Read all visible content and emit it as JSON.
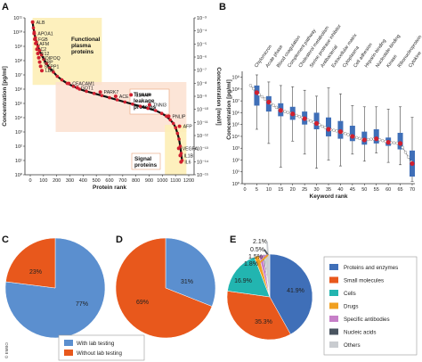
{
  "figure": {
    "panel_labels": [
      "A",
      "B",
      "C",
      "D",
      "E"
    ],
    "copyright": "© EMBO"
  },
  "chart_data": [
    {
      "panel": "A",
      "type": "scatter",
      "xlabel": "Protein rank",
      "ylabel": "Concentration [pg/ml]",
      "ylabel_right": "Concentration [mol/l]",
      "xlim": [
        -50,
        1050
      ],
      "ylim_log10": [
        0,
        11
      ],
      "xticks": [
        "0",
        "100",
        "200",
        "300",
        "400",
        "500",
        "600",
        "700",
        "800",
        "900",
        "1000",
        "1100",
        "1200"
      ],
      "yticks_left": [
        "10⁰",
        "10¹",
        "10²",
        "10³",
        "10⁴",
        "10⁵",
        "10⁶",
        "10⁷",
        "10⁸",
        "10⁹",
        "10¹⁰",
        "10¹¹"
      ],
      "yticks_right": [
        "10⁻¹⁵",
        "10⁻¹⁴",
        "10⁻¹³",
        "10⁻¹²",
        "10⁻¹¹",
        "10⁻¹⁰",
        "10⁻⁹",
        "10⁻⁸",
        "10⁻⁷",
        "10⁻⁶",
        "10⁻⁵",
        "10⁻⁴",
        "10⁻³"
      ],
      "regions": [
        {
          "label": "Functional plasma proteins",
          "x_range": [
            0,
            450
          ],
          "log_range": [
            6.3,
            11
          ]
        },
        {
          "label": "Tissue leakage proteins",
          "x_range": [
            150,
            1000
          ],
          "log_range": [
            3,
            6.5
          ]
        },
        {
          "label": "Signal proteins",
          "x_range": [
            860,
            1000
          ],
          "log_range": [
            0,
            3.5
          ]
        }
      ],
      "points": [
        {
          "x": 0,
          "log": 10.7
        },
        {
          "x": 5,
          "log": 10.3
        },
        {
          "x": 10,
          "log": 10.0
        },
        {
          "x": 18,
          "log": 9.6
        },
        {
          "x": 25,
          "log": 9.3
        },
        {
          "x": 35,
          "log": 9.0
        },
        {
          "x": 45,
          "log": 8.7
        },
        {
          "x": 58,
          "log": 8.4
        },
        {
          "x": 72,
          "log": 8.1
        },
        {
          "x": 90,
          "log": 7.8
        },
        {
          "x": 110,
          "log": 7.5
        },
        {
          "x": 135,
          "log": 7.2
        },
        {
          "x": 160,
          "log": 6.9
        },
        {
          "x": 190,
          "log": 6.65
        },
        {
          "x": 225,
          "log": 6.4
        },
        {
          "x": 265,
          "log": 6.2
        },
        {
          "x": 305,
          "log": 6.0
        },
        {
          "x": 350,
          "log": 5.85
        },
        {
          "x": 400,
          "log": 5.7
        },
        {
          "x": 450,
          "log": 5.55
        },
        {
          "x": 500,
          "log": 5.4
        },
        {
          "x": 550,
          "log": 5.25
        },
        {
          "x": 600,
          "log": 5.1
        },
        {
          "x": 650,
          "log": 4.95
        },
        {
          "x": 700,
          "log": 4.8
        },
        {
          "x": 750,
          "log": 4.65
        },
        {
          "x": 800,
          "log": 4.5
        },
        {
          "x": 840,
          "log": 4.3
        },
        {
          "x": 870,
          "log": 4.1
        },
        {
          "x": 895,
          "log": 3.85
        },
        {
          "x": 915,
          "log": 3.6
        },
        {
          "x": 930,
          "log": 3.3
        },
        {
          "x": 942,
          "log": 2.9
        },
        {
          "x": 952,
          "log": 2.5
        },
        {
          "x": 960,
          "log": 2.0
        },
        {
          "x": 966,
          "log": 1.5
        },
        {
          "x": 972,
          "log": 1.0
        }
      ],
      "annotations": [
        {
          "text": "ALB",
          "x": 0,
          "log": 10.7
        },
        {
          "text": "APOA1",
          "x": 10,
          "log": 9.9
        },
        {
          "text": "FGB",
          "x": 14,
          "log": 9.5
        },
        {
          "text": "AFM",
          "x": 20,
          "log": 9.2
        },
        {
          "text": "C2",
          "x": 28,
          "log": 8.8
        },
        {
          "text": "F12",
          "x": 34,
          "log": 8.5
        },
        {
          "text": "ADIPOQ",
          "x": 40,
          "log": 8.2
        },
        {
          "text": "CRP",
          "x": 46,
          "log": 7.9
        },
        {
          "text": "SEPP1",
          "x": 52,
          "log": 7.6
        },
        {
          "text": "LBP",
          "x": 60,
          "log": 7.3
        },
        {
          "text": "CEACAM1",
          "x": 235,
          "log": 6.4
        },
        {
          "text": "GOT1",
          "x": 290,
          "log": 6.1
        },
        {
          "text": "PARK7",
          "x": 440,
          "log": 5.8
        },
        {
          "text": "ACE",
          "x": 540,
          "log": 5.5
        },
        {
          "text": "IL1RAP",
          "x": 640,
          "log": 5.6
        },
        {
          "text": "TNNI3",
          "x": 760,
          "log": 4.9
        },
        {
          "text": "PNLIP",
          "x": 885,
          "log": 4.1
        },
        {
          "text": "AFP",
          "x": 955,
          "log": 3.4
        },
        {
          "text": "VEGFA",
          "x": 950,
          "log": 1.85
        },
        {
          "text": "IL1B",
          "x": 960,
          "log": 1.35
        },
        {
          "text": "IL6",
          "x": 965,
          "log": 0.9
        }
      ],
      "colors": {
        "point": "#d01f2f",
        "line": "#111111",
        "plasma": "#fdeeb6",
        "tissue": "#fbe0d0"
      }
    },
    {
      "panel": "B",
      "type": "box",
      "xlabel": "Keyword rank",
      "ylabel": "Concentration [pg/ml]",
      "xticks": [
        "0",
        "5",
        "10",
        "15",
        "20",
        "25",
        "30",
        "35",
        "40",
        "45",
        "50",
        "55",
        "60",
        "65",
        "70"
      ],
      "yticks": [
        "10⁰",
        "10¹",
        "10²",
        "10³",
        "10⁴",
        "10⁵",
        "10⁶",
        "10⁷",
        "10⁸",
        "10⁹"
      ],
      "ylim_log10": [
        0,
        9.5
      ],
      "categories": [
        "Chylomicron",
        "Acute phase",
        "Blood coagulation",
        "Complement pathway",
        "Cholesterol metabolism",
        "Serine protease inhibitor",
        "Antibacterial",
        "Extracellular matrix",
        "Cytoplasma",
        "Cell adhesion",
        "Heparin-binding",
        "Nucleotide-binding",
        "Kinase",
        "Ribonucleoprotein",
        "Cytokine"
      ],
      "boxes": [
        {
          "x": 5,
          "q1": 6.6,
          "med": 7.7,
          "q3": 8.3,
          "min": 4.6,
          "max": 9.2
        },
        {
          "x": 10,
          "q1": 6.1,
          "med": 6.9,
          "q3": 7.4,
          "min": 3.4,
          "max": 8.6
        },
        {
          "x": 15,
          "q1": 5.7,
          "med": 6.2,
          "q3": 6.8,
          "min": 1.4,
          "max": 8.3
        },
        {
          "x": 20,
          "q1": 5.4,
          "med": 5.9,
          "q3": 6.5,
          "min": 3.6,
          "max": 8.2
        },
        {
          "x": 25,
          "q1": 5.0,
          "med": 5.5,
          "q3": 6.1,
          "min": 2.5,
          "max": 7.9
        },
        {
          "x": 30,
          "q1": 4.6,
          "med": 5.1,
          "q3": 6.0,
          "min": 1.3,
          "max": 7.4
        },
        {
          "x": 35,
          "q1": 4.0,
          "med": 4.6,
          "q3": 5.6,
          "min": 2.0,
          "max": 8.1
        },
        {
          "x": 40,
          "q1": 3.8,
          "med": 4.4,
          "q3": 5.3,
          "min": 1.5,
          "max": 7.6
        },
        {
          "x": 45,
          "q1": 3.6,
          "med": 4.0,
          "q3": 4.9,
          "min": 2.5,
          "max": 6.6
        },
        {
          "x": 50,
          "q1": 3.3,
          "med": 3.7,
          "q3": 4.4,
          "min": 1.9,
          "max": 6.5
        },
        {
          "x": 55,
          "q1": 3.4,
          "med": 3.8,
          "q3": 4.6,
          "min": 2.6,
          "max": 6.5
        },
        {
          "x": 60,
          "q1": 3.2,
          "med": 3.5,
          "q3": 3.9,
          "min": 1.8,
          "max": 6.3
        },
        {
          "x": 65,
          "q1": 2.9,
          "med": 3.4,
          "q3": 4.3,
          "min": 1.6,
          "max": 6.5
        },
        {
          "x": 70,
          "q1": 0.6,
          "med": 1.7,
          "q3": 2.8,
          "min": 0.2,
          "max": 5.6
        }
      ],
      "trend": [
        {
          "x": 2,
          "log": 8.4
        },
        {
          "x": 5,
          "log": 7.7
        },
        {
          "x": 10,
          "log": 6.9
        },
        {
          "x": 15,
          "log": 6.2
        },
        {
          "x": 20,
          "log": 5.9
        },
        {
          "x": 25,
          "log": 5.5
        },
        {
          "x": 30,
          "log": 5.1
        },
        {
          "x": 35,
          "log": 4.6
        },
        {
          "x": 40,
          "log": 4.4
        },
        {
          "x": 45,
          "log": 4.0
        },
        {
          "x": 50,
          "log": 3.7
        },
        {
          "x": 55,
          "log": 3.8
        },
        {
          "x": 60,
          "log": 3.5
        },
        {
          "x": 65,
          "log": 3.4
        },
        {
          "x": 70,
          "log": 1.7
        }
      ],
      "colors": {
        "box": "#3f6fb8",
        "median": "#d01f2f",
        "open": "#ffffff"
      }
    },
    {
      "panel": "C",
      "type": "pie",
      "slices": [
        {
          "name": "With lab testing",
          "value": 77,
          "label": "77%",
          "color": "#5b8fcf"
        },
        {
          "name": "Without lab testing",
          "value": 23,
          "label": "23%",
          "color": "#e8581c"
        }
      ]
    },
    {
      "panel": "D",
      "type": "pie",
      "slices": [
        {
          "name": "With lab testing",
          "value": 31,
          "label": "31%",
          "color": "#5b8fcf"
        },
        {
          "name": "Without lab testing",
          "value": 69,
          "label": "69%",
          "color": "#e8581c"
        }
      ]
    },
    {
      "panel": "E",
      "type": "pie",
      "slices": [
        {
          "name": "Proteins and enzymes",
          "value": 41.9,
          "label": "41.9%",
          "color": "#3f6fb8"
        },
        {
          "name": "Small molecules",
          "value": 35.3,
          "label": "35.3%",
          "color": "#e8581c"
        },
        {
          "name": "Cells",
          "value": 16.9,
          "label": "16.9%",
          "color": "#22b5b0"
        },
        {
          "name": "Drugs",
          "value": 1.8,
          "label": "1.8%",
          "color": "#f0a020"
        },
        {
          "name": "Specific antibodies",
          "value": 1.5,
          "label": "1.5%",
          "color": "#c77fc8"
        },
        {
          "name": "Nucleic acids",
          "value": 0.5,
          "label": "0.5%",
          "color": "#4a5560"
        },
        {
          "name": "Others",
          "value": 2.1,
          "label": "2.1%",
          "color": "#c9ccd0"
        }
      ]
    }
  ],
  "legend_cd": [
    "With lab testing",
    "Without lab testing"
  ]
}
